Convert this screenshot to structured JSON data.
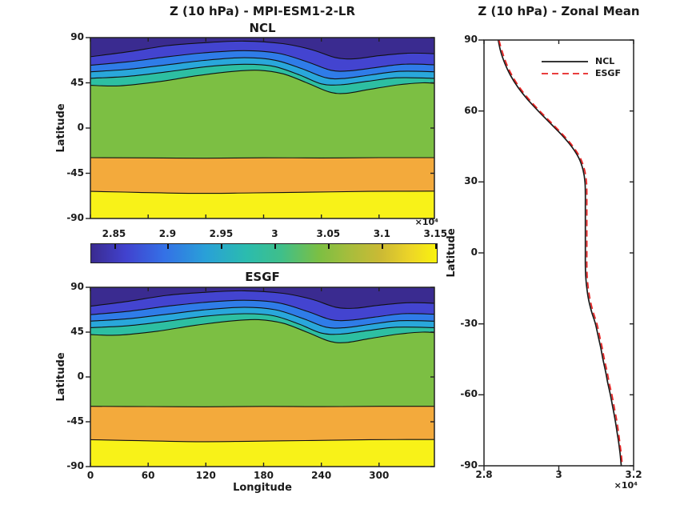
{
  "figure": {
    "background": "#ffffff",
    "axis_color": "#222222",
    "text_color": "#1a1a1a"
  },
  "contour_boundaries": {
    "note": "contour line latitudes as [lon,lat] control points, shared by NCL and ESGF panels",
    "lon_max": 357.5,
    "curves": [
      {
        "level_x1e4": 2.85,
        "points": [
          [
            0,
            71
          ],
          [
            40,
            76
          ],
          [
            80,
            82
          ],
          [
            120,
            85
          ],
          [
            160,
            86.5
          ],
          [
            200,
            84
          ],
          [
            230,
            78
          ],
          [
            255,
            70
          ],
          [
            275,
            69
          ],
          [
            300,
            72
          ],
          [
            330,
            74.5
          ],
          [
            357.5,
            74
          ]
        ]
      },
      {
        "level_x1e4": 2.9,
        "points": [
          [
            0,
            62.5
          ],
          [
            40,
            66
          ],
          [
            80,
            71
          ],
          [
            120,
            75
          ],
          [
            160,
            77
          ],
          [
            195,
            74.5
          ],
          [
            225,
            66
          ],
          [
            250,
            57.5
          ],
          [
            270,
            57
          ],
          [
            295,
            60
          ],
          [
            325,
            63.5
          ],
          [
            357.5,
            63
          ]
        ]
      },
      {
        "level_x1e4": 2.95,
        "points": [
          [
            0,
            56
          ],
          [
            40,
            58.5
          ],
          [
            80,
            63
          ],
          [
            120,
            67.5
          ],
          [
            160,
            70
          ],
          [
            192,
            67.5
          ],
          [
            220,
            59
          ],
          [
            245,
            50
          ],
          [
            265,
            49.5
          ],
          [
            292,
            53
          ],
          [
            322,
            56.5
          ],
          [
            357.5,
            56
          ]
        ]
      },
      {
        "level_x1e4": 3.0,
        "points": [
          [
            0,
            49.5
          ],
          [
            40,
            51.5
          ],
          [
            80,
            56
          ],
          [
            120,
            61
          ],
          [
            160,
            63.5
          ],
          [
            190,
            61.5
          ],
          [
            217,
            53
          ],
          [
            240,
            44
          ],
          [
            260,
            43
          ],
          [
            288,
            46.5
          ],
          [
            318,
            50
          ],
          [
            357.5,
            49.5
          ]
        ]
      },
      {
        "level_x1e4": 3.05,
        "points": [
          [
            0,
            42.5
          ],
          [
            30,
            42
          ],
          [
            70,
            46
          ],
          [
            110,
            52
          ],
          [
            150,
            56.5
          ],
          [
            175,
            57.5
          ],
          [
            200,
            54
          ],
          [
            225,
            45
          ],
          [
            248,
            36
          ],
          [
            265,
            34.5
          ],
          [
            290,
            38.5
          ],
          [
            320,
            43
          ],
          [
            345,
            45
          ],
          [
            357.5,
            44.5
          ]
        ]
      },
      {
        "level_x1e4": 3.1,
        "points": [
          [
            0,
            -29.5
          ],
          [
            60,
            -29.7
          ],
          [
            120,
            -30
          ],
          [
            180,
            -29.6
          ],
          [
            240,
            -29.8
          ],
          [
            300,
            -29.5
          ],
          [
            357.5,
            -29.5
          ]
        ]
      },
      {
        "level_x1e4": 3.15,
        "points": [
          [
            0,
            -63
          ],
          [
            50,
            -64
          ],
          [
            110,
            -65
          ],
          [
            170,
            -64.5
          ],
          [
            230,
            -63.8
          ],
          [
            290,
            -63
          ],
          [
            357.5,
            -62.8
          ]
        ]
      }
    ]
  },
  "chart_data": [
    {
      "id": "ncl_contour",
      "type": "heatmap",
      "subtype": "filled_contour",
      "title": "Z (10 hPa) - MPI-ESM1-2-LR",
      "subtitle": "NCL",
      "xlabel": "",
      "ylabel": "Latitude",
      "xlim": [
        0,
        357.5
      ],
      "ylim": [
        -90,
        90
      ],
      "x_ticks": [
        0,
        60,
        120,
        180,
        240,
        300
      ],
      "x_tick_labels": [],
      "y_ticks": [
        90,
        45,
        0,
        -45,
        -90
      ],
      "y_tick_labels": [
        "90",
        "45",
        "0",
        "-45",
        "-90"
      ],
      "contour_levels_x1e4": [
        2.8,
        2.85,
        2.9,
        2.95,
        3.0,
        3.05,
        3.1,
        3.15
      ],
      "band_colors": [
        "#3a2b90",
        "#4344d0",
        "#2f7ce8",
        "#29a7db",
        "#2dbfa2",
        "#7cbf43",
        "#f3aa3c",
        "#f8f218"
      ],
      "boundaries_ref": "contour_boundaries"
    },
    {
      "id": "colorbar",
      "type": "colorbar",
      "orientation": "horizontal",
      "tick_labels": [
        "2.85",
        "2.9",
        "2.95",
        "3",
        "3.05",
        "3.1",
        "3.15"
      ],
      "tick_values": [
        2.85,
        2.9,
        2.95,
        3.0,
        3.05,
        3.1,
        3.15
      ],
      "domain": [
        2.828,
        3.152
      ],
      "multiplier": "×10⁴",
      "gradient_stops": [
        [
          "#3a2b90",
          0
        ],
        [
          "#4142ce",
          10
        ],
        [
          "#3470e6",
          21
        ],
        [
          "#29a0d8",
          33
        ],
        [
          "#2bbcae",
          45
        ],
        [
          "#3fbf8a",
          55
        ],
        [
          "#7cbf43",
          66
        ],
        [
          "#a8bd3c",
          75
        ],
        [
          "#ccba34",
          84
        ],
        [
          "#ecd428",
          92
        ],
        [
          "#f9f20e",
          100
        ]
      ]
    },
    {
      "id": "esgf_contour",
      "type": "heatmap",
      "subtype": "filled_contour",
      "subtitle": "ESGF",
      "xlabel": "Longitude",
      "ylabel": "Latitude",
      "xlim": [
        0,
        357.5
      ],
      "ylim": [
        -90,
        90
      ],
      "x_ticks": [
        0,
        60,
        120,
        180,
        240,
        300
      ],
      "x_tick_labels": [
        "0",
        "60",
        "120",
        "180",
        "240",
        "300"
      ],
      "y_ticks": [
        90,
        45,
        0,
        -45,
        -90
      ],
      "y_tick_labels": [
        "90",
        "45",
        "0",
        "-45",
        "-90"
      ],
      "contour_levels_x1e4": [
        2.8,
        2.85,
        2.9,
        2.95,
        3.0,
        3.05,
        3.1,
        3.15
      ],
      "band_colors": [
        "#3a2b90",
        "#4344d0",
        "#2f7ce8",
        "#29a7db",
        "#2dbfa2",
        "#7cbf43",
        "#f3aa3c",
        "#f8f218"
      ],
      "boundaries_ref": "contour_boundaries"
    },
    {
      "id": "zonal_mean",
      "type": "line",
      "title": "Z (10 hPa) - Zonal Mean",
      "ylabel": "Latitude",
      "xlim": [
        2.8,
        3.2
      ],
      "ylim": [
        -90,
        90
      ],
      "x_ticks": [
        2.8,
        3.0,
        3.2
      ],
      "x_tick_labels": [
        "2.8",
        "3",
        "3.2"
      ],
      "x_multiplier": "×10⁴",
      "y_ticks": [
        90,
        60,
        30,
        0,
        -30,
        -60,
        -90
      ],
      "y_tick_labels": [
        "90",
        "60",
        "30",
        "0",
        "-30",
        "-60",
        "-90"
      ],
      "legend": [
        {
          "label": "NCL",
          "color": "#1a1a1a",
          "style": "solid"
        },
        {
          "label": "ESGF",
          "color": "#e62222",
          "style": "dashed"
        }
      ],
      "series": [
        {
          "name": "NCL",
          "color": "#1a1a1a",
          "style": "solid",
          "lat": [
            90,
            85,
            80,
            75,
            70,
            65,
            60,
            55,
            50,
            45,
            40,
            35,
            30,
            25,
            20,
            15,
            10,
            5,
            0,
            -5,
            -10,
            -15,
            -20,
            -25,
            -30,
            -35,
            -40,
            -45,
            -50,
            -55,
            -60,
            -65,
            -70,
            -75,
            -80,
            -85,
            -90
          ],
          "value_x1e4": [
            2.838,
            2.845,
            2.856,
            2.871,
            2.891,
            2.916,
            2.945,
            2.976,
            3.007,
            3.034,
            3.054,
            3.065,
            3.07,
            3.071,
            3.071,
            3.071,
            3.071,
            3.071,
            3.071,
            3.071,
            3.072,
            3.075,
            3.08,
            3.088,
            3.098,
            3.105,
            3.112,
            3.118,
            3.125,
            3.131,
            3.138,
            3.144,
            3.15,
            3.155,
            3.16,
            3.164,
            3.167
          ]
        },
        {
          "name": "ESGF",
          "color": "#e62222",
          "style": "dashed",
          "lat": [
            90,
            85,
            80,
            75,
            70,
            65,
            60,
            55,
            50,
            45,
            40,
            35,
            30,
            25,
            20,
            15,
            10,
            5,
            0,
            -5,
            -10,
            -15,
            -20,
            -25,
            -30,
            -35,
            -40,
            -45,
            -50,
            -55,
            -60,
            -65,
            -70,
            -75,
            -80,
            -85,
            -90
          ],
          "value_x1e4": [
            2.84,
            2.849,
            2.86,
            2.875,
            2.895,
            2.92,
            2.949,
            2.98,
            3.011,
            3.038,
            3.058,
            3.069,
            3.074,
            3.075,
            3.075,
            3.075,
            3.075,
            3.075,
            3.075,
            3.075,
            3.076,
            3.079,
            3.084,
            3.092,
            3.102,
            3.109,
            3.116,
            3.122,
            3.129,
            3.135,
            3.142,
            3.148,
            3.154,
            3.159,
            3.163,
            3.167,
            3.17
          ]
        }
      ]
    }
  ]
}
